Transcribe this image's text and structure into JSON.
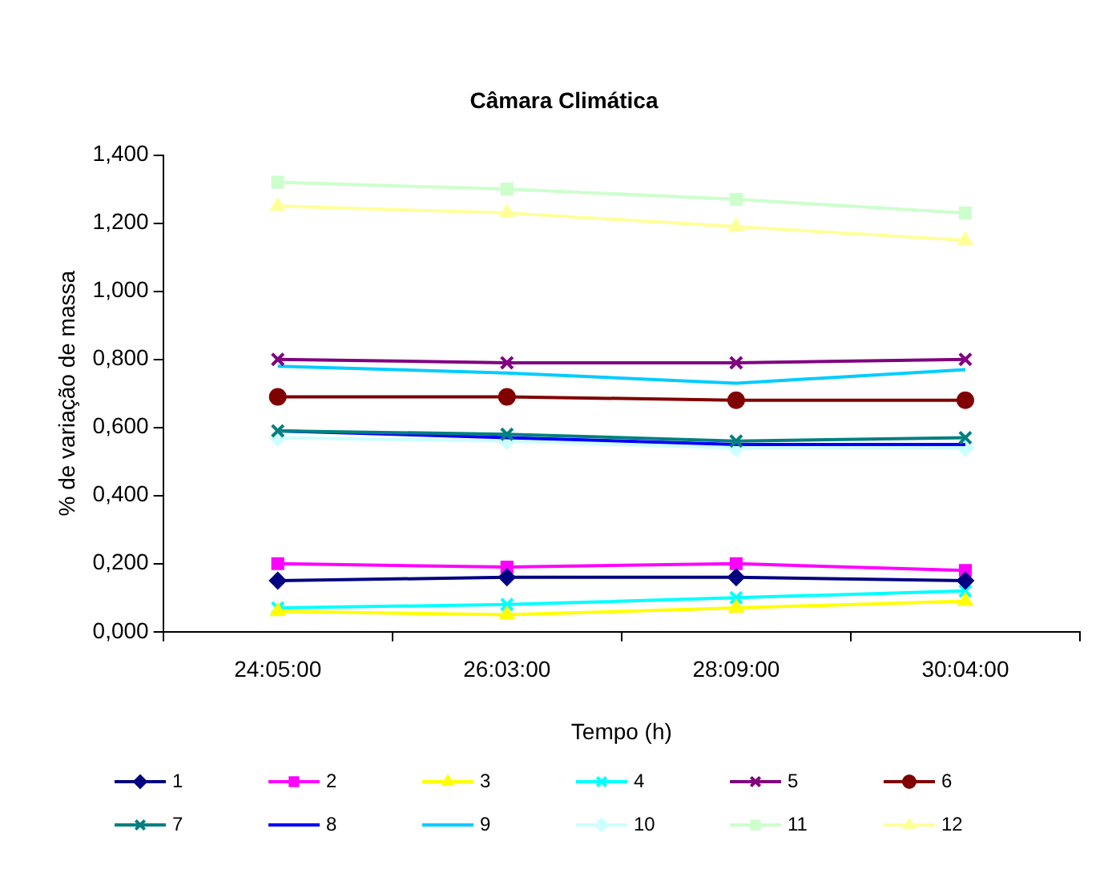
{
  "chart_data": {
    "type": "line",
    "title": "Câmara Climática",
    "xlabel": "Tempo (h)",
    "ylabel": "% de variação de massa",
    "categories": [
      "24:05:00",
      "26:03:00",
      "28:09:00",
      "30:04:00"
    ],
    "series": [
      {
        "name": "1",
        "color": "#000080",
        "marker": "diamond",
        "values": [
          0.15,
          0.16,
          0.16,
          0.15
        ]
      },
      {
        "name": "2",
        "color": "#ff00ff",
        "marker": "square",
        "values": [
          0.2,
          0.19,
          0.2,
          0.18
        ]
      },
      {
        "name": "3",
        "color": "#ffff00",
        "marker": "triangle",
        "values": [
          0.06,
          0.05,
          0.07,
          0.09
        ]
      },
      {
        "name": "4",
        "color": "#00ffff",
        "marker": "cross",
        "values": [
          0.07,
          0.08,
          0.1,
          0.12
        ]
      },
      {
        "name": "5",
        "color": "#800080",
        "marker": "cross",
        "values": [
          0.8,
          0.79,
          0.79,
          0.8
        ]
      },
      {
        "name": "6",
        "color": "#800000",
        "marker": "circle",
        "values": [
          0.69,
          0.69,
          0.68,
          0.68
        ]
      },
      {
        "name": "7",
        "color": "#008080",
        "marker": "cross",
        "values": [
          0.59,
          0.58,
          0.56,
          0.57
        ]
      },
      {
        "name": "8",
        "color": "#0000ff",
        "marker": "none",
        "values": [
          0.59,
          0.57,
          0.55,
          0.55
        ]
      },
      {
        "name": "9",
        "color": "#00ccff",
        "marker": "none",
        "values": [
          0.78,
          0.76,
          0.73,
          0.77
        ]
      },
      {
        "name": "10",
        "color": "#ccffff",
        "marker": "diamond",
        "values": [
          0.57,
          0.56,
          0.54,
          0.54
        ]
      },
      {
        "name": "11",
        "color": "#ccffcc",
        "marker": "square",
        "values": [
          1.32,
          1.3,
          1.27,
          1.23
        ]
      },
      {
        "name": "12",
        "color": "#ffff99",
        "marker": "triangle",
        "values": [
          1.25,
          1.23,
          1.19,
          1.15
        ]
      }
    ],
    "ylim": [
      0,
      1.4
    ],
    "yticks": [
      {
        "value": 0,
        "label": "0,000"
      },
      {
        "value": 0.2,
        "label": "0,200"
      },
      {
        "value": 0.4,
        "label": "0,400"
      },
      {
        "value": 0.6,
        "label": "0,600"
      },
      {
        "value": 0.8,
        "label": "0,800"
      },
      {
        "value": 1.0,
        "label": "1,000"
      },
      {
        "value": 1.2,
        "label": "1,200"
      },
      {
        "value": 1.4,
        "label": "1,400"
      }
    ],
    "grid": false,
    "legend": "bottom",
    "line_style": "solid"
  }
}
